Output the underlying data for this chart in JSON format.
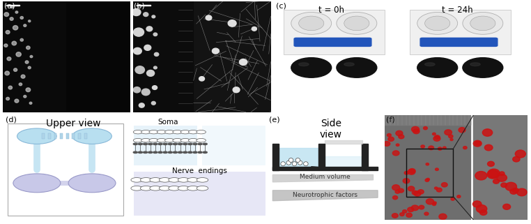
{
  "fig_width": 7.62,
  "fig_height": 3.21,
  "bg_color": "#ffffff",
  "panel_labels": [
    "(a)",
    "(b)",
    "(c)",
    "(d)",
    "(e)",
    "(f)"
  ],
  "panel_label_fontsize": 8,
  "upper_view_title": "Upper view",
  "side_view_title": "Side\nview",
  "soma_label": "Soma",
  "nerve_endings_label": "Nerve  endings",
  "medium_volume_label": "Medium volume",
  "neurotrophic_label": "Neurotrophic factors",
  "t0_label": "t = 0h",
  "t24_label": "t = 24h",
  "light_blue": "#b8dff0",
  "lighter_blue": "#cceeff",
  "pale_blue": "#ddeef8",
  "pale_purple": "#c8c8e8",
  "title_fontsize": 9,
  "label_fontsize": 7,
  "small_fontsize": 6.5
}
